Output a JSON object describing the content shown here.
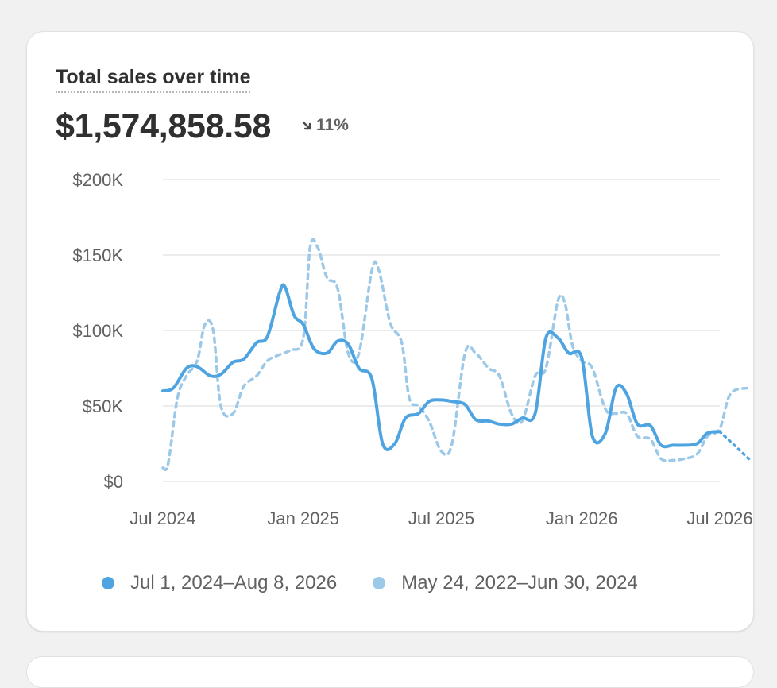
{
  "card": {
    "title": "Total sales over time",
    "total": "$1,574,858.58",
    "change": "11%",
    "change_icon": "arrow-down-right-icon"
  },
  "colors": {
    "current": "#4ea4e1",
    "previous": "#9dc9e8",
    "grid": "#e6e6e6",
    "axis_text": "#616161"
  },
  "legend": [
    {
      "label": "Jul 1, 2024–Aug 8, 2026",
      "color": "#4ea4e1"
    },
    {
      "label": "May 24, 2022–Jun 30, 2024",
      "color": "#9dc9e8"
    }
  ],
  "chart_data": {
    "type": "line",
    "title": "Total sales over time",
    "x_ticks": [
      "Jul 2024",
      "Jan 2025",
      "Jul 2025",
      "Jan 2026",
      "Jul 2026"
    ],
    "y_ticks": [
      "$0",
      "$50K",
      "$100K",
      "$150K",
      "$200K"
    ],
    "ylim": [
      0,
      200000
    ],
    "grid": true,
    "legend_position": "bottom",
    "series": [
      {
        "name": "Jul 1, 2024–Aug 8, 2026",
        "style": "solid",
        "points": [
          [
            "2024-07-01",
            60000
          ],
          [
            "2024-07-15",
            62000
          ],
          [
            "2024-08-01",
            75000
          ],
          [
            "2024-08-15",
            76000
          ],
          [
            "2024-09-01",
            70000
          ],
          [
            "2024-09-15",
            71000
          ],
          [
            "2024-10-01",
            79000
          ],
          [
            "2024-10-15",
            81000
          ],
          [
            "2024-11-01",
            92000
          ],
          [
            "2024-11-15",
            96000
          ],
          [
            "2024-12-01",
            125000
          ],
          [
            "2024-12-08",
            129000
          ],
          [
            "2024-12-20",
            110000
          ],
          [
            "2025-01-01",
            104000
          ],
          [
            "2025-01-15",
            88000
          ],
          [
            "2025-02-01",
            85000
          ],
          [
            "2025-02-15",
            93000
          ],
          [
            "2025-03-01",
            91000
          ],
          [
            "2025-03-15",
            75000
          ],
          [
            "2025-04-01",
            68000
          ],
          [
            "2025-04-15",
            25000
          ],
          [
            "2025-05-01",
            25000
          ],
          [
            "2025-05-15",
            42000
          ],
          [
            "2025-06-01",
            45000
          ],
          [
            "2025-06-15",
            53000
          ],
          [
            "2025-07-01",
            54000
          ],
          [
            "2025-07-15",
            53000
          ],
          [
            "2025-08-01",
            51000
          ],
          [
            "2025-08-15",
            41000
          ],
          [
            "2025-09-01",
            40000
          ],
          [
            "2025-09-15",
            38000
          ],
          [
            "2025-10-01",
            38000
          ],
          [
            "2025-10-15",
            42000
          ],
          [
            "2025-11-01",
            45000
          ],
          [
            "2025-11-15",
            95000
          ],
          [
            "2025-12-01",
            95000
          ],
          [
            "2025-12-15",
            85000
          ],
          [
            "2026-01-01",
            82000
          ],
          [
            "2026-01-15",
            30000
          ],
          [
            "2026-02-01",
            32000
          ],
          [
            "2026-02-15",
            62000
          ],
          [
            "2026-03-01",
            58000
          ],
          [
            "2026-03-15",
            38000
          ],
          [
            "2026-04-01",
            37000
          ],
          [
            "2026-04-15",
            24000
          ],
          [
            "2026-05-01",
            24000
          ],
          [
            "2026-05-15",
            24000
          ],
          [
            "2026-06-01",
            25000
          ],
          [
            "2026-06-15",
            32000
          ],
          [
            "2026-07-01",
            33000
          ]
        ],
        "projected": [
          [
            "2026-07-01",
            33000
          ],
          [
            "2026-08-08",
            15000
          ]
        ]
      },
      {
        "name": "May 24, 2022–Jun 30, 2024",
        "style": "dashed",
        "points": [
          [
            "2024-07-01",
            9000
          ],
          [
            "2024-07-08",
            12000
          ],
          [
            "2024-07-20",
            55000
          ],
          [
            "2024-08-01",
            70000
          ],
          [
            "2024-08-15",
            80000
          ],
          [
            "2024-08-25",
            104000
          ],
          [
            "2024-09-05",
            100000
          ],
          [
            "2024-09-15",
            50000
          ],
          [
            "2024-10-01",
            45000
          ],
          [
            "2024-10-15",
            63000
          ],
          [
            "2024-11-01",
            70000
          ],
          [
            "2024-11-15",
            80000
          ],
          [
            "2024-12-01",
            84000
          ],
          [
            "2024-12-15",
            87000
          ],
          [
            "2025-01-01",
            95000
          ],
          [
            "2025-01-10",
            155000
          ],
          [
            "2025-01-20",
            155000
          ],
          [
            "2025-02-01",
            135000
          ],
          [
            "2025-02-15",
            128000
          ],
          [
            "2025-03-01",
            85000
          ],
          [
            "2025-03-15",
            85000
          ],
          [
            "2025-04-01",
            140000
          ],
          [
            "2025-04-10",
            140000
          ],
          [
            "2025-04-25",
            105000
          ],
          [
            "2025-05-10",
            92000
          ],
          [
            "2025-05-20",
            55000
          ],
          [
            "2025-06-01",
            50000
          ],
          [
            "2025-06-15",
            40000
          ],
          [
            "2025-07-01",
            20000
          ],
          [
            "2025-07-15",
            25000
          ],
          [
            "2025-08-01",
            85000
          ],
          [
            "2025-08-15",
            85000
          ],
          [
            "2025-09-01",
            75000
          ],
          [
            "2025-09-15",
            70000
          ],
          [
            "2025-10-01",
            45000
          ],
          [
            "2025-10-15",
            40000
          ],
          [
            "2025-11-01",
            70000
          ],
          [
            "2025-11-15",
            75000
          ],
          [
            "2025-12-01",
            120000
          ],
          [
            "2025-12-10",
            118000
          ],
          [
            "2025-12-20",
            90000
          ],
          [
            "2026-01-01",
            80000
          ],
          [
            "2026-01-15",
            75000
          ],
          [
            "2026-02-01",
            48000
          ],
          [
            "2026-02-15",
            45000
          ],
          [
            "2026-03-01",
            45000
          ],
          [
            "2026-03-15",
            30000
          ],
          [
            "2026-04-01",
            28000
          ],
          [
            "2026-04-15",
            15000
          ],
          [
            "2026-05-01",
            14000
          ],
          [
            "2026-05-15",
            15000
          ],
          [
            "2026-06-01",
            18000
          ],
          [
            "2026-06-15",
            30000
          ],
          [
            "2026-07-01",
            35000
          ],
          [
            "2026-07-15",
            58000
          ],
          [
            "2026-08-08",
            62000
          ]
        ]
      }
    ]
  }
}
